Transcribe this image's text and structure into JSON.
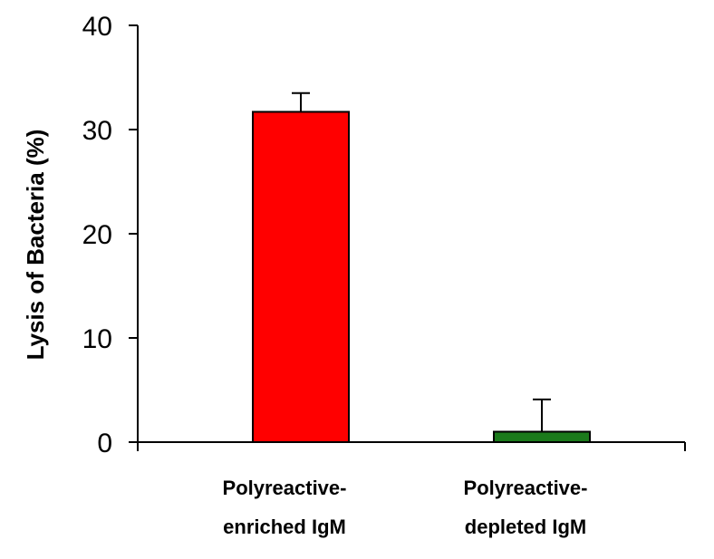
{
  "chart_data": {
    "type": "bar",
    "title": "",
    "ylabel": "Lysis of Bacteria (%)",
    "xlabel": "",
    "ylim": [
      0,
      40
    ],
    "yticks": [
      0,
      10,
      20,
      30,
      40
    ],
    "grid": false,
    "legend": "none",
    "categories": [
      [
        "Polyreactive-",
        "enriched IgM"
      ],
      [
        "Polyreactive-",
        "depleted IgM"
      ]
    ],
    "values": [
      31.7,
      1.0
    ],
    "errors": [
      1.8,
      3.1
    ],
    "colors": [
      "#ff0000",
      "#1b7a1b"
    ]
  }
}
